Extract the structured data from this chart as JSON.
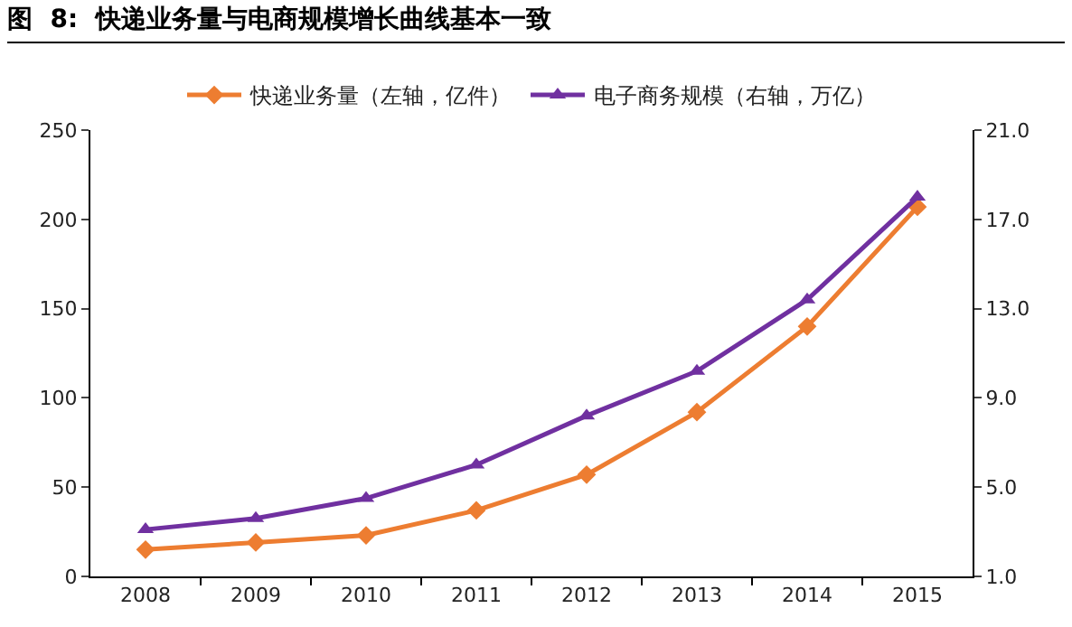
{
  "chart_data": {
    "type": "line",
    "title": "图  8:  快递业务量与电商规模增长曲线基本一致",
    "categories": [
      "2008",
      "2009",
      "2010",
      "2011",
      "2012",
      "2013",
      "2014",
      "2015"
    ],
    "series": [
      {
        "name": "快递业务量（左轴，亿件）",
        "color": "#ed7d31",
        "marker": "diamond",
        "values": [
          15,
          19,
          23,
          37,
          57,
          92,
          140,
          207
        ]
      },
      {
        "name": "电子商务规模（右轴，万亿）",
        "color": "#7030a0",
        "marker": "triangle",
        "axis": "y2",
        "values": [
          3.1,
          3.6,
          4.5,
          6.0,
          8.2,
          10.2,
          13.4,
          18.0
        ]
      }
    ],
    "ylim": [
      0,
      250
    ],
    "yticks": [
      0,
      50,
      100,
      150,
      200,
      250
    ],
    "y2lim": [
      1,
      21
    ],
    "y2ticks": [
      {
        "value": 1,
        "label": "1.0"
      },
      {
        "value": 5,
        "label": "5.0"
      },
      {
        "value": 9,
        "label": "9.0"
      },
      {
        "value": 13,
        "label": "13.0"
      },
      {
        "value": 17,
        "label": "17.0"
      },
      {
        "value": 21,
        "label": "21.0"
      }
    ],
    "grid": false,
    "legend": "top",
    "line_style": "solid"
  }
}
